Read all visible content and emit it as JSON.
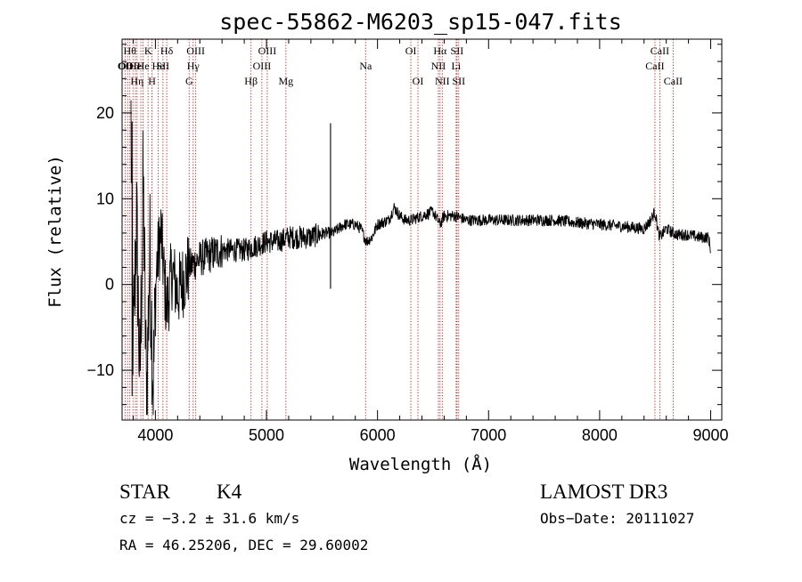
{
  "chart_data": {
    "type": "line",
    "title": "spec-55862-M6203_sp15-047.fits",
    "xlabel": "Wavelength (Å)",
    "ylabel": "Flux (relative)",
    "xlim": [
      3700,
      9100
    ],
    "ylim": [
      -15.8,
      28.6
    ],
    "x_ticks": [
      4000,
      5000,
      6000,
      7000,
      8000,
      9000
    ],
    "x_tick_labels": [
      "4000",
      "5000",
      "6000",
      "7000",
      "8000",
      "9000"
    ],
    "y_ticks": [
      -10,
      0,
      10,
      20
    ],
    "y_tick_labels": [
      "−10",
      "0",
      "10",
      "20"
    ],
    "grid": false,
    "series": [
      {
        "name": "spectrum",
        "color": "#000000",
        "anchors": [
          [
            3780,
            19
          ],
          [
            3800,
            -8
          ],
          [
            3830,
            8
          ],
          [
            3860,
            -12
          ],
          [
            3890,
            12
          ],
          [
            3920,
            -14
          ],
          [
            3950,
            4
          ],
          [
            3980,
            -12
          ],
          [
            4010,
            2
          ],
          [
            4050,
            6
          ],
          [
            4100,
            -3
          ],
          [
            4150,
            1.5
          ],
          [
            4200,
            -1
          ],
          [
            4300,
            2
          ],
          [
            4400,
            3
          ],
          [
            4500,
            3.5
          ],
          [
            4600,
            4
          ],
          [
            4700,
            4
          ],
          [
            4800,
            4
          ],
          [
            4900,
            4.5
          ],
          [
            5000,
            5
          ],
          [
            5100,
            5
          ],
          [
            5200,
            5.5
          ],
          [
            5300,
            5.5
          ],
          [
            5400,
            5.5
          ],
          [
            5500,
            6
          ],
          [
            5550,
            6
          ],
          [
            5600,
            6
          ],
          [
            5650,
            6.5
          ],
          [
            5700,
            7
          ],
          [
            5800,
            7
          ],
          [
            5850,
            6.5
          ],
          [
            5900,
            5
          ],
          [
            5950,
            5.5
          ],
          [
            6000,
            7
          ],
          [
            6100,
            7.5
          ],
          [
            6150,
            9
          ],
          [
            6200,
            8
          ],
          [
            6250,
            7.5
          ],
          [
            6300,
            7.5
          ],
          [
            6400,
            8
          ],
          [
            6500,
            8.5
          ],
          [
            6563,
            7
          ],
          [
            6600,
            8
          ],
          [
            6700,
            8
          ],
          [
            6800,
            7.5
          ],
          [
            7000,
            7.5
          ],
          [
            7200,
            7.5
          ],
          [
            7400,
            7.5
          ],
          [
            7600,
            7.5
          ],
          [
            7800,
            7.2
          ],
          [
            8000,
            7
          ],
          [
            8200,
            6.8
          ],
          [
            8400,
            6.5
          ],
          [
            8460,
            7.5
          ],
          [
            8498,
            8.5
          ],
          [
            8530,
            6
          ],
          [
            8542,
            5.5
          ],
          [
            8600,
            6.5
          ],
          [
            8662,
            6
          ],
          [
            8700,
            5.8
          ],
          [
            8800,
            5.8
          ],
          [
            8900,
            5.5
          ],
          [
            8980,
            5.5
          ],
          [
            9000,
            4
          ]
        ],
        "features": [
          {
            "x": 5577,
            "y_min": -0.5,
            "y_max": 18.8
          },
          {
            "x": 3790,
            "y_min": -13,
            "y_max": 19
          }
        ]
      }
    ],
    "spectral_lines": [
      {
        "x": 3727,
        "label": "OII",
        "row": 2
      },
      {
        "x": 3750,
        "label": "OIII",
        "row": 2
      },
      {
        "x": 3770,
        "label": "Hθ",
        "row": 1
      },
      {
        "x": 3798,
        "label": "OII",
        "row": 2
      },
      {
        "x": 3820,
        "label": "He",
        "row": 2
      },
      {
        "x": 3835,
        "label": "Hη",
        "row": 3
      },
      {
        "x": 3869,
        "label": "H",
        "row": 2
      },
      {
        "x": 3889,
        "label": "He",
        "row": 2
      },
      {
        "x": 3934,
        "label": "K",
        "row": 1
      },
      {
        "x": 3969,
        "label": "H",
        "row": 3
      },
      {
        "x": 4026,
        "label": "He",
        "row": 2
      },
      {
        "x": 4068,
        "label": "SII",
        "row": 2
      },
      {
        "x": 4102,
        "label": "Hδ",
        "row": 1
      },
      {
        "x": 4304,
        "label": "G",
        "row": 3
      },
      {
        "x": 4340,
        "label": "Hγ",
        "row": 2
      },
      {
        "x": 4363,
        "label": "OIII",
        "row": 1
      },
      {
        "x": 4861,
        "label": "Hβ",
        "row": 3
      },
      {
        "x": 4959,
        "label": "OIII",
        "row": 2
      },
      {
        "x": 5007,
        "label": "OIII",
        "row": 1
      },
      {
        "x": 5175,
        "label": "Mg",
        "row": 3
      },
      {
        "x": 5893,
        "label": "Na",
        "row": 2
      },
      {
        "x": 6300,
        "label": "OI",
        "row": 1
      },
      {
        "x": 6364,
        "label": "OI",
        "row": 3
      },
      {
        "x": 6548,
        "label": "NII",
        "row": 2
      },
      {
        "x": 6563,
        "label": "Hα",
        "row": 1
      },
      {
        "x": 6583,
        "label": "NII",
        "row": 3
      },
      {
        "x": 6708,
        "label": "Li",
        "row": 2
      },
      {
        "x": 6716,
        "label": "SII",
        "row": 1
      },
      {
        "x": 6731,
        "label": "SII",
        "row": 3
      },
      {
        "x": 8498,
        "label": "CaII",
        "row": 2
      },
      {
        "x": 8542,
        "label": "CaII",
        "row": 1
      },
      {
        "x": 8662,
        "label": "CaII",
        "row": 3
      }
    ],
    "colors": {
      "line": "#000000",
      "marker": "#cc0000",
      "axes": "#000000"
    }
  },
  "info": {
    "class": "STAR",
    "subclass": "K4",
    "survey": "LAMOST DR3",
    "cz": "cz = −3.2 ± 31.6 km/s",
    "obs_date": "Obs−Date: 20111027",
    "coords": "RA =  46.25206, DEC =  29.60002"
  }
}
